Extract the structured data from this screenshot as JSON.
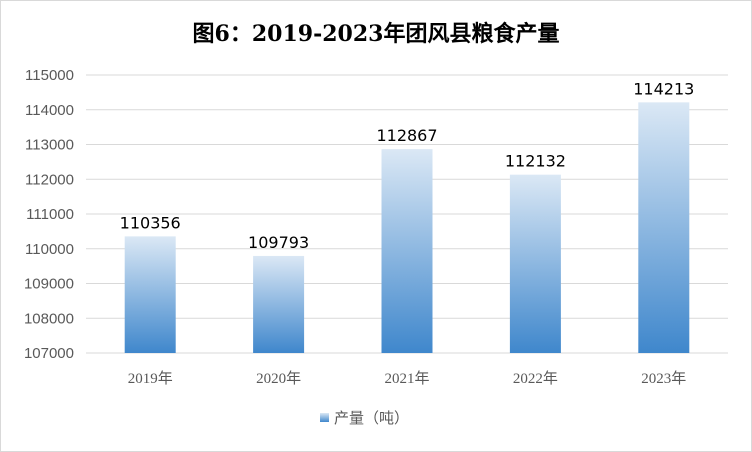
{
  "chart_data": {
    "type": "bar",
    "title": "图6：2019-2023年团风县粮食产量",
    "categories": [
      "2019年",
      "2020年",
      "2021年",
      "2022年",
      "2023年"
    ],
    "series": [
      {
        "name": "产量（吨）",
        "values": [
          110356,
          109793,
          112867,
          112132,
          114213
        ]
      }
    ],
    "data_labels": [
      "110356",
      "109793",
      "112867",
      "112132",
      "114213"
    ],
    "ylim": [
      107000,
      115000
    ],
    "yticks": [
      "107000",
      "108000",
      "109000",
      "110000",
      "111000",
      "112000",
      "113000",
      "114000",
      "115000"
    ],
    "grid": true,
    "legend_position": "bottom",
    "colors": {
      "bar_top": "#dbe8f5",
      "bar_bottom": "#3f87cc",
      "grid": "#d9d9d9",
      "axis_text": "#595959"
    }
  }
}
